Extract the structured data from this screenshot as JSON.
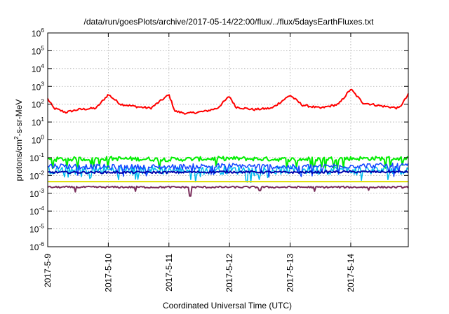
{
  "chart_data": {
    "type": "line",
    "title": "/data/run/goesPlots/archive/2017-05-14/22:00/flux/../flux/5daysEarthFluxes.txt",
    "xlabel": "Coordinated Universal Time (UTC)",
    "ylabel": {
      "pre": "protons/cm",
      "sup": "2",
      "post": "-s-sr-MeV"
    },
    "y_scale": "log",
    "grid": true,
    "legend": "none",
    "xlim": [
      0,
      5.95
    ],
    "ylim_exp": [
      -6,
      6
    ],
    "y_ticks": [
      {
        "base": "10",
        "exp": "-6"
      },
      {
        "base": "10",
        "exp": "-5"
      },
      {
        "base": "10",
        "exp": "-4"
      },
      {
        "base": "10",
        "exp": "-3"
      },
      {
        "base": "10",
        "exp": "-2"
      },
      {
        "base": "10",
        "exp": "-1"
      },
      {
        "base": "10",
        "exp": "0"
      },
      {
        "base": "10",
        "exp": "1"
      },
      {
        "base": "10",
        "exp": "2"
      },
      {
        "base": "10",
        "exp": "3"
      },
      {
        "base": "10",
        "exp": "4"
      },
      {
        "base": "10",
        "exp": "5"
      },
      {
        "base": "10",
        "exp": "6"
      }
    ],
    "x_ticks": [
      {
        "label": "2017-5-9",
        "x": 0
      },
      {
        "label": "2017-5-10",
        "x": 1
      },
      {
        "label": "2017-5-11",
        "x": 2
      },
      {
        "label": "2017-5-12",
        "x": 3
      },
      {
        "label": "2017-5-13",
        "x": 4
      },
      {
        "label": "2017-5-14",
        "x": 5
      }
    ],
    "series": [
      {
        "color": "#ff0000",
        "width": 2,
        "noise": 0.06,
        "points": [
          [
            0,
            200
          ],
          [
            0.1,
            60
          ],
          [
            0.3,
            35
          ],
          [
            0.5,
            50
          ],
          [
            0.8,
            60
          ],
          [
            1.0,
            350
          ],
          [
            1.2,
            100
          ],
          [
            1.5,
            70
          ],
          [
            1.7,
            60
          ],
          [
            2.0,
            340
          ],
          [
            2.1,
            40
          ],
          [
            2.3,
            30
          ],
          [
            2.6,
            40
          ],
          [
            2.8,
            60
          ],
          [
            3.0,
            280
          ],
          [
            3.1,
            70
          ],
          [
            3.4,
            50
          ],
          [
            3.7,
            60
          ],
          [
            4.0,
            320
          ],
          [
            4.2,
            90
          ],
          [
            4.5,
            60
          ],
          [
            4.8,
            100
          ],
          [
            5.0,
            700
          ],
          [
            5.2,
            120
          ],
          [
            5.5,
            80
          ],
          [
            5.8,
            60
          ],
          [
            5.95,
            350
          ]
        ]
      },
      {
        "color": "#00ee00",
        "width": 2,
        "noise": 0.12,
        "points": [
          [
            0,
            0.08
          ],
          [
            1,
            0.09
          ],
          [
            2,
            0.08
          ],
          [
            3,
            0.09
          ],
          [
            4,
            0.08
          ],
          [
            5,
            0.09
          ],
          [
            5.95,
            0.09
          ]
        ]
      },
      {
        "color": "#00bbee",
        "width": 1.5,
        "noise": 0.25,
        "points": [
          [
            0,
            0.02
          ],
          [
            1,
            0.02
          ],
          [
            2,
            0.02
          ],
          [
            3,
            0.02
          ],
          [
            4,
            0.02
          ],
          [
            5,
            0.02
          ],
          [
            5.95,
            0.02
          ]
        ]
      },
      {
        "color": "#1144ff",
        "width": 1.5,
        "noise": 0.15,
        "points": [
          [
            0,
            0.035
          ],
          [
            1,
            0.03
          ],
          [
            2,
            0.03
          ],
          [
            3,
            0.035
          ],
          [
            4,
            0.03
          ],
          [
            5,
            0.035
          ],
          [
            5.95,
            0.035
          ]
        ]
      },
      {
        "color": "#0000aa",
        "width": 2,
        "noise": 0.06,
        "points": [
          [
            0,
            0.015
          ],
          [
            1,
            0.015
          ],
          [
            2,
            0.015
          ],
          [
            3,
            0.016
          ],
          [
            4,
            0.015
          ],
          [
            5,
            0.016
          ],
          [
            5.95,
            0.016
          ]
        ]
      },
      {
        "color": "#dddd00",
        "width": 2,
        "noise": 0.0,
        "points": [
          [
            0,
            0.0045
          ],
          [
            5.95,
            0.0045
          ]
        ]
      },
      {
        "color": "#7a2e5c",
        "width": 2,
        "noise": 0.05,
        "dips": [
          [
            0.45,
            0.0012
          ],
          [
            1.45,
            0.0013
          ],
          [
            2.35,
            0.0007
          ],
          [
            3.5,
            0.0014
          ],
          [
            4.4,
            0.0013
          ],
          [
            5.3,
            0.0015
          ]
        ],
        "points": [
          [
            0,
            0.0022
          ],
          [
            1,
            0.0022
          ],
          [
            2,
            0.0022
          ],
          [
            3,
            0.0022
          ],
          [
            4,
            0.0022
          ],
          [
            5,
            0.0022
          ],
          [
            5.95,
            0.0022
          ]
        ]
      }
    ]
  }
}
